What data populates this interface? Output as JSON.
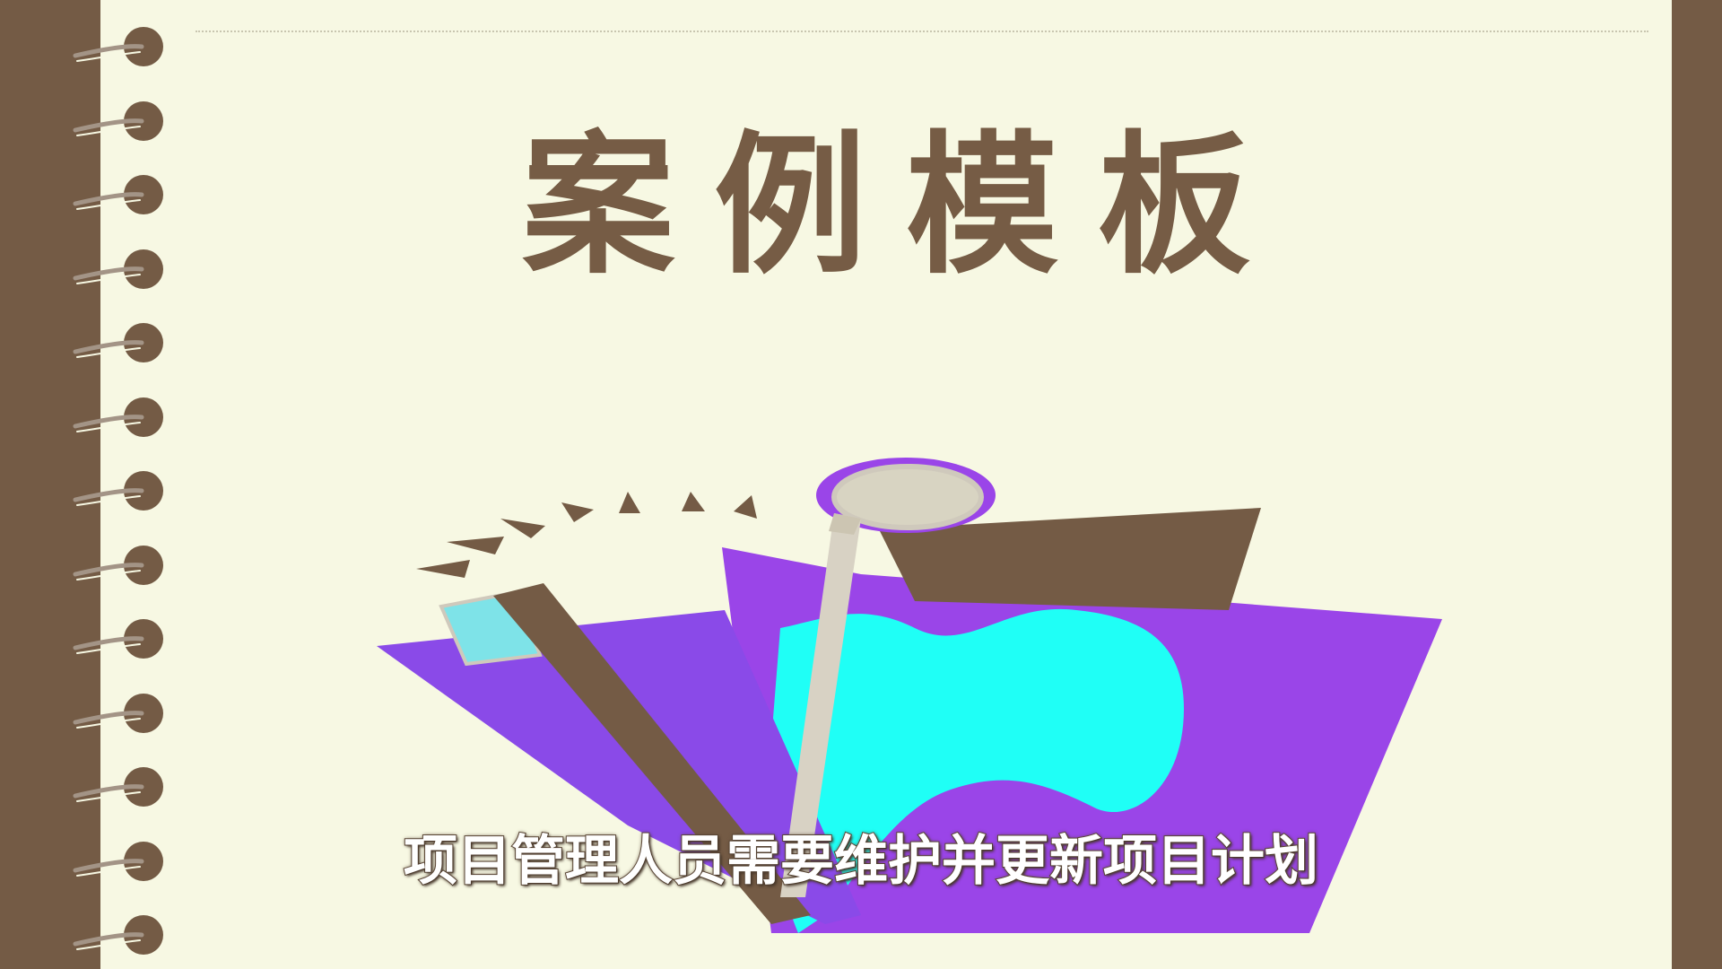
{
  "slide": {
    "title": "案例模板",
    "subtitle": "项目管理人员需要维护并更新项目计划"
  },
  "colors": {
    "background": "#f7f8e3",
    "brown": "#745b45",
    "purple": "#9a45e8",
    "blue_purple": "#8a4ae8",
    "cyan": "#1ffff6",
    "gray": "#cfc9bc"
  },
  "icons": {
    "binder_rings": "spiral-binding-icon",
    "illustration": "project-folder-illustration"
  }
}
